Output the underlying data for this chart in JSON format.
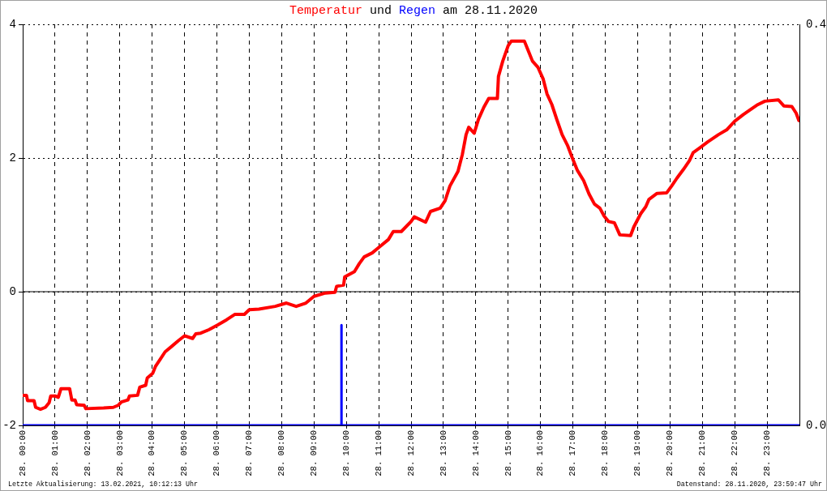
{
  "chart_data": {
    "type": "line",
    "title": "Temperatur und Regen am 28.11.2020",
    "annotations": [
      "Letzte Aktualisierung: 13.02.2021, 10:12:13 Uhr",
      "Datenstand: 28.11.2020, 23:59:47 Uhr"
    ],
    "xlim": [
      "2020-11-28T00:00",
      "2020-11-29T00:00"
    ],
    "xticks": [
      {
        "value": "2020-11-28T00:00",
        "label": "28. 00:00"
      },
      {
        "value": "2020-11-28T01:00",
        "label": "28. 01:00"
      },
      {
        "value": "2020-11-28T02:00",
        "label": "28. 02:00"
      },
      {
        "value": "2020-11-28T03:00",
        "label": "28. 03:00"
      },
      {
        "value": "2020-11-28T04:00",
        "label": "28. 04:00"
      },
      {
        "value": "2020-11-28T05:00",
        "label": "28. 05:00"
      },
      {
        "value": "2020-11-28T06:00",
        "label": "28. 06:00"
      },
      {
        "value": "2020-11-28T07:00",
        "label": "28. 07:00"
      },
      {
        "value": "2020-11-28T08:00",
        "label": "28. 08:00"
      },
      {
        "value": "2020-11-28T09:00",
        "label": "28. 09:00"
      },
      {
        "value": "2020-11-28T10:00",
        "label": "28. 10:00"
      },
      {
        "value": "2020-11-28T11:00",
        "label": "28. 11:00"
      },
      {
        "value": "2020-11-28T12:00",
        "label": "28. 12:00"
      },
      {
        "value": "2020-11-28T13:00",
        "label": "28. 13:00"
      },
      {
        "value": "2020-11-28T14:00",
        "label": "28. 14:00"
      },
      {
        "value": "2020-11-28T15:00",
        "label": "28. 15:00"
      },
      {
        "value": "2020-11-28T16:00",
        "label": "28. 16:00"
      },
      {
        "value": "2020-11-28T17:00",
        "label": "28. 17:00"
      },
      {
        "value": "2020-11-28T18:00",
        "label": "28. 18:00"
      },
      {
        "value": "2020-11-28T19:00",
        "label": "28. 19:00"
      },
      {
        "value": "2020-11-28T20:00",
        "label": "28. 20:00"
      },
      {
        "value": "2020-11-28T21:00",
        "label": "28. 21:00"
      },
      {
        "value": "2020-11-28T22:00",
        "label": "28. 22:00"
      },
      {
        "value": "2020-11-28T23:00",
        "label": "28. 23:00"
      }
    ],
    "ylim": [
      -2,
      4
    ],
    "yticks": [
      -2,
      0,
      2,
      4
    ],
    "y2lim": [
      0,
      0.4
    ],
    "y2ticks": [
      {
        "value": 0,
        "label": "0.0"
      },
      0.4
    ],
    "grid": true,
    "marker": "none",
    "ref_lines": [
      {
        "axis": "y",
        "value": 0,
        "color": "#000000",
        "line_style": "solid"
      }
    ],
    "series": [
      {
        "color": "#ff0000",
        "x": [
          "2020-11-28T00:00",
          "2020-11-28T00:07",
          "2020-11-28T00:09",
          "2020-11-28T00:21",
          "2020-11-28T00:24",
          "2020-11-28T00:33",
          "2020-11-28T00:42",
          "2020-11-28T00:49",
          "2020-11-28T00:52",
          "2020-11-28T01:00",
          "2020-11-28T01:06",
          "2020-11-28T01:11",
          "2020-11-28T01:27",
          "2020-11-28T01:31",
          "2020-11-28T01:37",
          "2020-11-28T01:40",
          "2020-11-28T01:54",
          "2020-11-28T01:57",
          "2020-11-28T02:30",
          "2020-11-28T02:48",
          "2020-11-28T02:57",
          "2020-11-28T03:03",
          "2020-11-28T03:15",
          "2020-11-28T03:18",
          "2020-11-28T03:33",
          "2020-11-28T03:37",
          "2020-11-28T03:48",
          "2020-11-28T03:51",
          "2020-11-28T04:01",
          "2020-11-28T04:06",
          "2020-11-28T04:15",
          "2020-11-28T04:24",
          "2020-11-28T04:36",
          "2020-11-28T04:49",
          "2020-11-28T05:00",
          "2020-11-28T05:15",
          "2020-11-28T05:21",
          "2020-11-28T05:30",
          "2020-11-28T05:45",
          "2020-11-28T06:01",
          "2020-11-28T06:18",
          "2020-11-28T06:33",
          "2020-11-28T06:51",
          "2020-11-28T07:00",
          "2020-11-28T07:18",
          "2020-11-28T07:48",
          "2020-11-28T08:09",
          "2020-11-28T08:27",
          "2020-11-28T08:45",
          "2020-11-28T09:00",
          "2020-11-28T09:21",
          "2020-11-28T09:39",
          "2020-11-28T09:42",
          "2020-11-28T09:55",
          "2020-11-28T09:57",
          "2020-11-28T10:15",
          "2020-11-28T10:24",
          "2020-11-28T10:33",
          "2020-11-28T10:48",
          "2020-11-28T11:00",
          "2020-11-28T11:18",
          "2020-11-28T11:27",
          "2020-11-28T11:42",
          "2020-11-28T12:00",
          "2020-11-28T12:06",
          "2020-11-28T12:27",
          "2020-11-28T12:36",
          "2020-11-28T12:54",
          "2020-11-28T13:03",
          "2020-11-28T13:12",
          "2020-11-28T13:27",
          "2020-11-28T13:35",
          "2020-11-28T13:42",
          "2020-11-28T13:47",
          "2020-11-28T13:57",
          "2020-11-28T14:05",
          "2020-11-28T14:15",
          "2020-11-28T14:24",
          "2020-11-28T14:40",
          "2020-11-28T14:42",
          "2020-11-28T14:50",
          "2020-11-28T15:00",
          "2020-11-28T15:06",
          "2020-11-28T15:30",
          "2020-11-28T15:36",
          "2020-11-28T15:45",
          "2020-11-28T15:55",
          "2020-11-28T16:05",
          "2020-11-28T16:12",
          "2020-11-28T16:21",
          "2020-11-28T16:30",
          "2020-11-28T16:40",
          "2020-11-28T16:50",
          "2020-11-28T16:58",
          "2020-11-28T17:08",
          "2020-11-28T17:20",
          "2020-11-28T17:30",
          "2020-11-28T17:40",
          "2020-11-28T17:50",
          "2020-11-28T17:58",
          "2020-11-28T18:06",
          "2020-11-28T18:17",
          "2020-11-28T18:27",
          "2020-11-28T18:47",
          "2020-11-28T18:53",
          "2020-11-28T19:06",
          "2020-11-28T19:15",
          "2020-11-28T19:21",
          "2020-11-28T19:36",
          "2020-11-28T19:54",
          "2020-11-28T20:03",
          "2020-11-28T20:13",
          "2020-11-28T20:25",
          "2020-11-28T20:36",
          "2020-11-28T20:43",
          "2020-11-28T20:55",
          "2020-11-28T21:10",
          "2020-11-28T21:30",
          "2020-11-28T21:45",
          "2020-11-28T22:00",
          "2020-11-28T22:16",
          "2020-11-28T22:30",
          "2020-11-28T22:41",
          "2020-11-28T22:56",
          "2020-11-28T23:21",
          "2020-11-28T23:31",
          "2020-11-28T23:46",
          "2020-11-28T23:54",
          "2020-11-28T23:59"
        ],
        "values": [
          -1.55,
          -1.55,
          -1.63,
          -1.63,
          -1.73,
          -1.76,
          -1.73,
          -1.66,
          -1.56,
          -1.56,
          -1.58,
          -1.45,
          -1.45,
          -1.62,
          -1.62,
          -1.69,
          -1.7,
          -1.75,
          -1.74,
          -1.73,
          -1.7,
          -1.65,
          -1.62,
          -1.56,
          -1.55,
          -1.43,
          -1.4,
          -1.29,
          -1.22,
          -1.12,
          -1.01,
          -0.9,
          -0.82,
          -0.73,
          -0.66,
          -0.7,
          -0.63,
          -0.62,
          -0.57,
          -0.5,
          -0.42,
          -0.34,
          -0.34,
          -0.27,
          -0.26,
          -0.22,
          -0.17,
          -0.22,
          -0.17,
          -0.07,
          -0.02,
          -0.01,
          0.08,
          0.1,
          0.22,
          0.3,
          0.42,
          0.52,
          0.58,
          0.66,
          0.78,
          0.9,
          0.9,
          1.05,
          1.12,
          1.04,
          1.2,
          1.25,
          1.36,
          1.58,
          1.8,
          2.05,
          2.35,
          2.46,
          2.37,
          2.58,
          2.76,
          2.89,
          2.89,
          3.22,
          3.45,
          3.68,
          3.75,
          3.75,
          3.63,
          3.45,
          3.36,
          3.18,
          2.96,
          2.8,
          2.58,
          2.35,
          2.19,
          2.02,
          1.82,
          1.66,
          1.46,
          1.31,
          1.25,
          1.13,
          1.05,
          1.03,
          0.85,
          0.84,
          0.97,
          1.17,
          1.27,
          1.38,
          1.47,
          1.48,
          1.58,
          1.7,
          1.83,
          1.96,
          2.08,
          2.15,
          2.24,
          2.35,
          2.42,
          2.55,
          2.65,
          2.73,
          2.79,
          2.85,
          2.87,
          2.78,
          2.77,
          2.67,
          2.56
        ]
      },
      {
        "color": "#0000ff",
        "axis": "y2",
        "x": [
          "2020-11-28T00:00",
          "2020-11-28T09:51",
          "2020-11-28T09:51",
          "2020-11-28T09:51",
          "2020-11-28T23:59"
        ],
        "values": [
          0,
          0,
          0.1,
          0,
          0
        ]
      }
    ]
  }
}
